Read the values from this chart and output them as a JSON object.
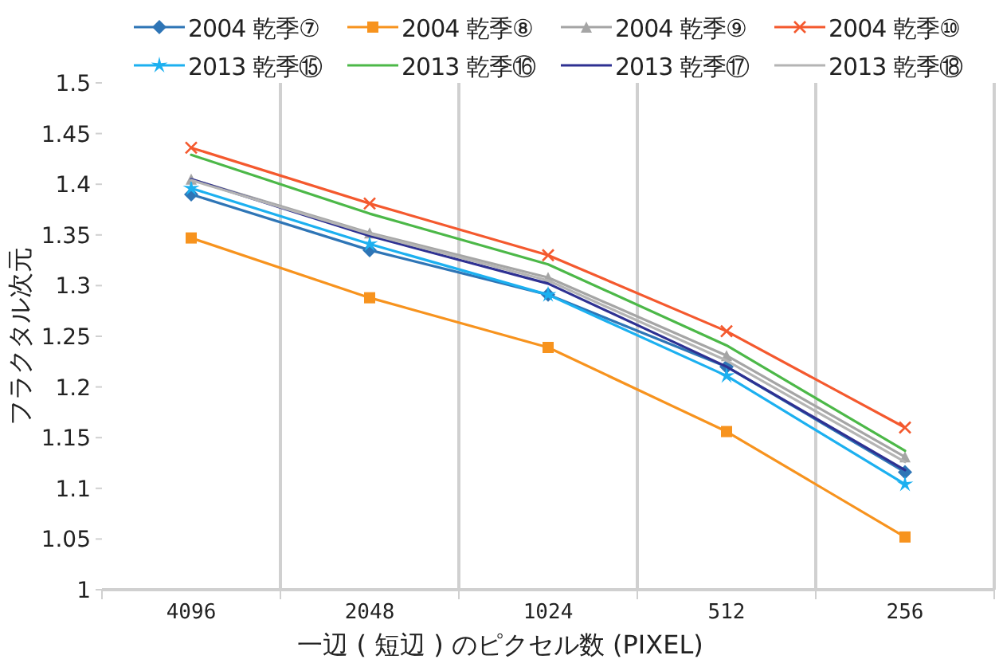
{
  "chart_data": {
    "type": "line",
    "xlabel": "一辺 ( 短辺 ) のピクセル数 (PIXEL)",
    "ylabel": "フラクタル次元",
    "categories": [
      "4096",
      "2048",
      "1024",
      "512",
      "256"
    ],
    "series": [
      {
        "name": "2004 乾季⑦",
        "color": "#2e75b6",
        "marker": "diamond",
        "values": [
          1.39,
          1.335,
          1.291,
          1.22,
          1.116
        ]
      },
      {
        "name": "2004 乾季⑧",
        "color": "#f7931e",
        "marker": "square",
        "values": [
          1.347,
          1.288,
          1.239,
          1.156,
          1.052
        ]
      },
      {
        "name": "2004 乾季⑨",
        "color": "#a5a5a5",
        "marker": "triangle",
        "values": [
          1.405,
          1.352,
          1.308,
          1.231,
          1.131
        ]
      },
      {
        "name": "2004 乾季⑩",
        "color": "#f4592e",
        "marker": "cross",
        "values": [
          1.436,
          1.381,
          1.33,
          1.255,
          1.16
        ]
      },
      {
        "name": "2013 乾季⑮",
        "color": "#1cb0f0",
        "marker": "star",
        "values": [
          1.396,
          1.341,
          1.291,
          1.211,
          1.104
        ]
      },
      {
        "name": "2013 乾季⑯",
        "color": "#4cb848",
        "marker": "none",
        "values": [
          1.429,
          1.371,
          1.321,
          1.241,
          1.137
        ]
      },
      {
        "name": "2013 乾季⑰",
        "color": "#2e3192",
        "marker": "none",
        "values": [
          1.405,
          1.349,
          1.302,
          1.22,
          1.118
        ]
      },
      {
        "name": "2013 乾季⑱",
        "color": "#b4b4b4",
        "marker": "none",
        "values": [
          1.404,
          1.351,
          1.305,
          1.226,
          1.126
        ]
      }
    ],
    "ylim": [
      1,
      1.5
    ],
    "yticks": [
      1,
      1.05,
      1.1,
      1.15,
      1.2,
      1.25,
      1.3,
      1.35,
      1.4,
      1.45,
      1.5
    ],
    "grid": "x",
    "legend": "top"
  }
}
